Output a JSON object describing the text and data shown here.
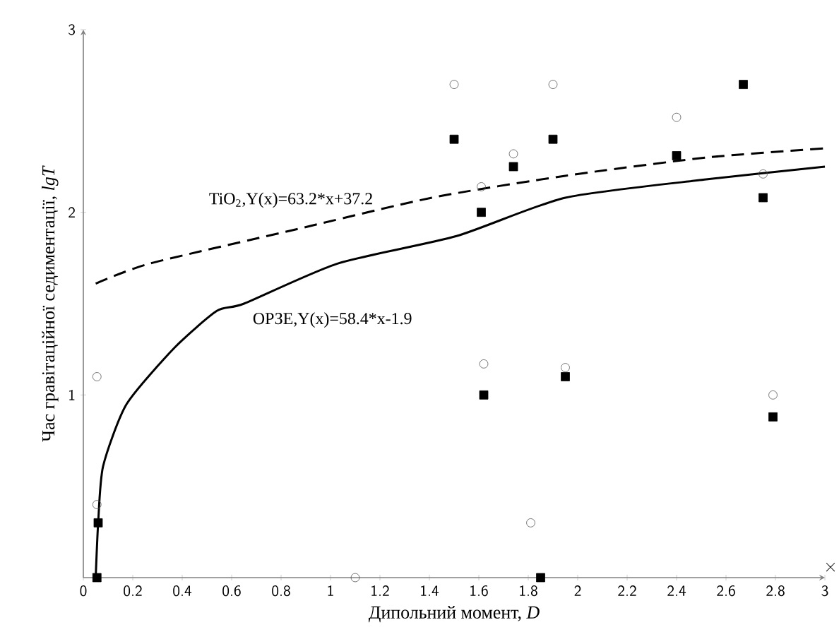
{
  "chart_data": {
    "type": "scatter",
    "xlabel": "Дипольний момент, *D*",
    "ylabel": "Час гравітаційної седиментації, *lgT*",
    "xlim": [
      0,
      3
    ],
    "ylim": [
      0,
      3
    ],
    "xticks": [
      0,
      0.2,
      0.4,
      0.6,
      0.8,
      1,
      1.2,
      1.4,
      1.6,
      1.8,
      2,
      2.2,
      2.4,
      2.6,
      2.8,
      3
    ],
    "yticks": [
      1,
      2,
      3
    ],
    "grid": false,
    "annotations": [
      "×"
    ],
    "series": [
      {
        "marker": "circle",
        "color": "#555555",
        "x": [
          0.055,
          0.055,
          1.1,
          1.5,
          1.9,
          1.74,
          1.61,
          2.4,
          2.75,
          1.62,
          1.95,
          1.81,
          2.79
        ],
        "values": [
          1.1,
          0.4,
          0,
          2.7,
          2.7,
          2.32,
          2.14,
          2.52,
          2.21,
          1.17,
          1.15,
          0.3,
          1.0
        ]
      },
      {
        "marker": "square",
        "color": "#000000",
        "x": [
          0.055,
          0.06,
          1.5,
          1.61,
          1.74,
          1.9,
          2.4,
          2.67,
          2.75,
          1.62,
          1.95,
          1.85,
          2.79
        ],
        "values": [
          0,
          0.3,
          2.4,
          2.0,
          2.25,
          2.4,
          2.31,
          2.7,
          2.08,
          1.0,
          1.1,
          0,
          0.88
        ]
      },
      {
        "type": "line",
        "name": "TiO$_{2}$,Y(x)=63.2*x+37.2",
        "line_style": "dashed",
        "marker": "none",
        "color": "#000000",
        "x": [
          0.05,
          0.27,
          0.84,
          1.41,
          1.95,
          2.52,
          3.0
        ],
        "values": [
          1.61,
          1.72,
          1.9,
          2.08,
          2.2,
          2.3,
          2.35
        ]
      },
      {
        "type": "line",
        "name": "ОРЗЕ,Y(x)=58.4*x-1.9",
        "line_style": "solid",
        "marker": "none",
        "color": "#000000",
        "x": [
          0.05,
          0.06,
          0.08,
          0.175,
          0.37,
          0.54,
          0.65,
          1.03,
          1.51,
          1.95,
          2.52,
          3.0
        ],
        "values": [
          0,
          0.3,
          0.61,
          0.95,
          1.26,
          1.46,
          1.5,
          1.72,
          1.87,
          2.08,
          2.18,
          2.25
        ]
      }
    ]
  }
}
